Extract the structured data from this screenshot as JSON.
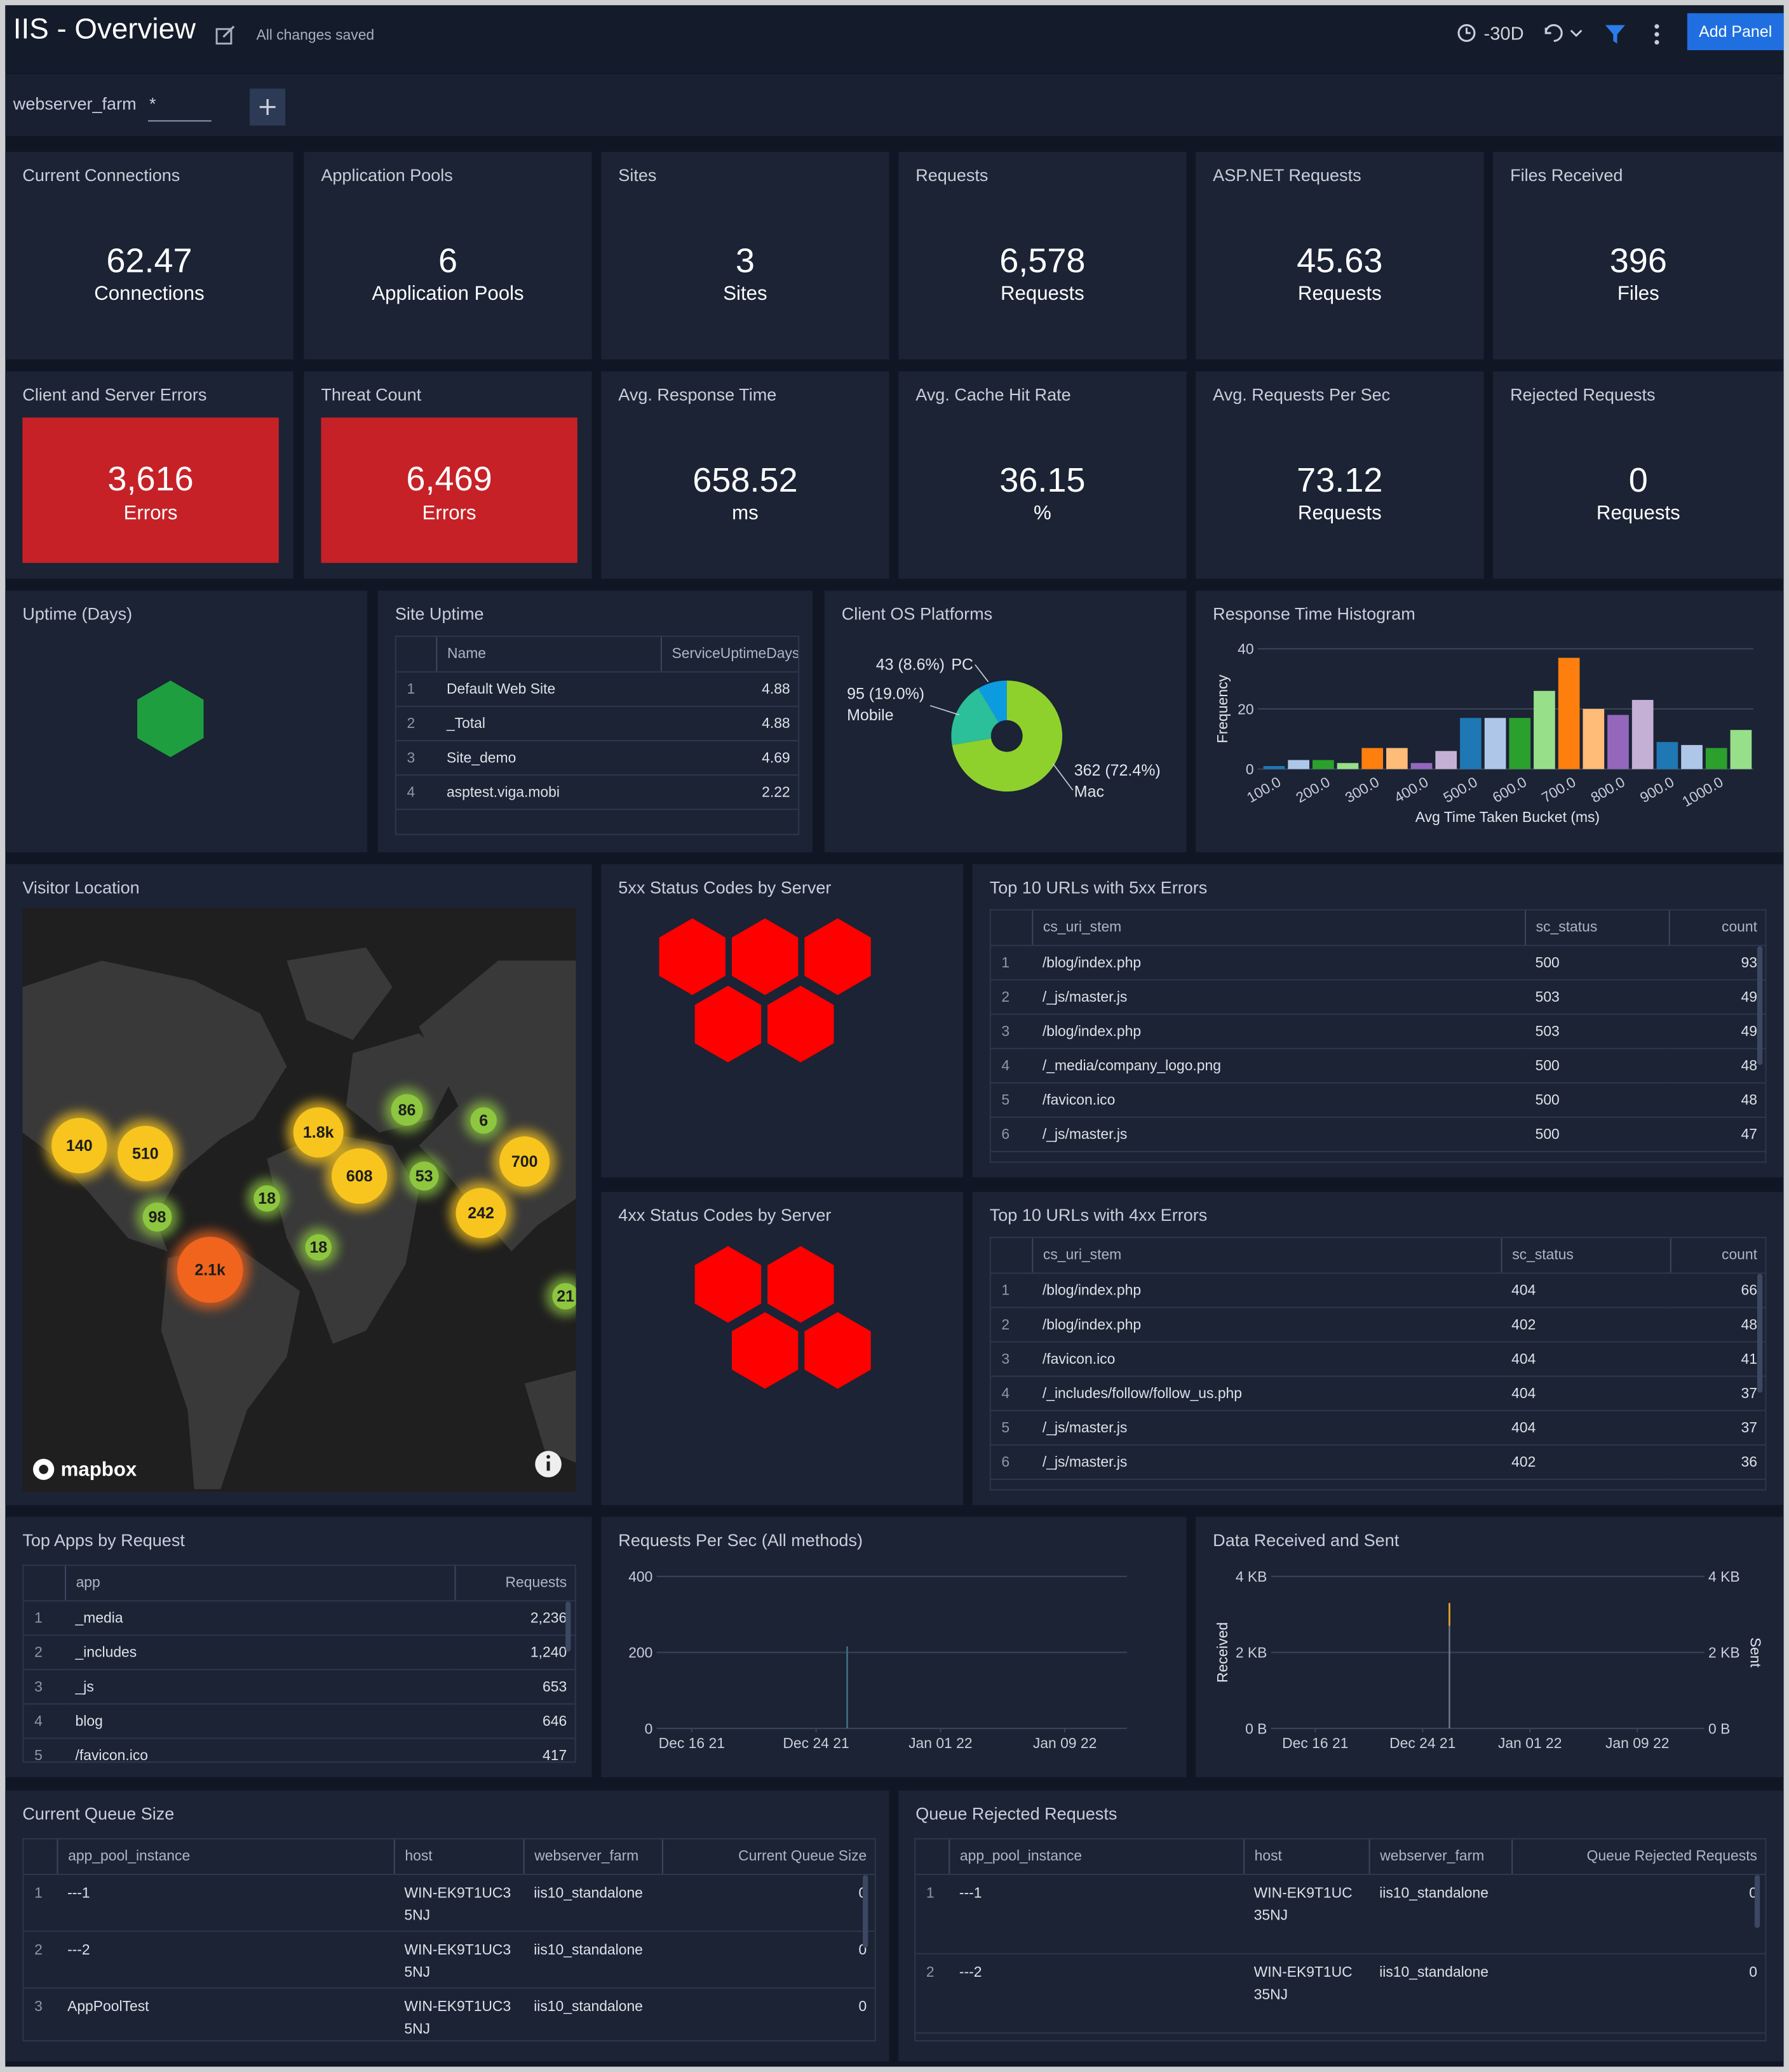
{
  "header": {
    "title": "IIS - Overview",
    "status": "All changes saved",
    "time_range": "-30D",
    "add_panel": "Add Panel"
  },
  "filter": {
    "name": "webserver_farm",
    "value": "*"
  },
  "stats": [
    {
      "title": "Current Connections",
      "value": "62.47",
      "unit": "Connections"
    },
    {
      "title": "Application Pools",
      "value": "6",
      "unit": "Application Pools"
    },
    {
      "title": "Sites",
      "value": "3",
      "unit": "Sites"
    },
    {
      "title": "Requests",
      "value": "6,578",
      "unit": "Requests"
    },
    {
      "title": "ASP.NET Requests",
      "value": "45.63",
      "unit": "Requests"
    },
    {
      "title": "Files Received",
      "value": "396",
      "unit": "Files"
    },
    {
      "title": "Client and Server Errors",
      "value": "3,616",
      "unit": "Errors",
      "color": "#c62127"
    },
    {
      "title": "Threat Count",
      "value": "6,469",
      "unit": "Errors",
      "color": "#c62127"
    },
    {
      "title": "Avg. Response Time",
      "value": "658.52",
      "unit": "ms"
    },
    {
      "title": "Avg. Cache Hit Rate",
      "value": "36.15",
      "unit": "%"
    },
    {
      "title": "Avg. Requests Per Sec",
      "value": "73.12",
      "unit": "Requests"
    },
    {
      "title": "Rejected Requests",
      "value": "0",
      "unit": "Requests"
    }
  ],
  "uptime": {
    "title": "Uptime (Days)"
  },
  "site_uptime": {
    "title": "Site Uptime",
    "columns": [
      "Name",
      "ServiceUptimeDays"
    ],
    "rows": [
      [
        "1",
        "Default Web Site",
        "4.88"
      ],
      [
        "2",
        "_Total",
        "4.88"
      ],
      [
        "3",
        "Site_demo",
        "4.69"
      ],
      [
        "4",
        "asptest.viga.mobi",
        "2.22"
      ]
    ]
  },
  "map": {
    "title": "Visitor Location",
    "clusters": [
      "140",
      "510",
      "1.8k",
      "86",
      "6",
      "608",
      "53",
      "700",
      "18",
      "98",
      "242",
      "18",
      "2.1k",
      "21"
    ],
    "attribution": "mapbox"
  },
  "status_5xx": {
    "title": "5xx Status Codes by Server"
  },
  "status_4xx": {
    "title": "4xx Status Codes by Server"
  },
  "urls_5xx": {
    "title": "Top 10 URLs with 5xx Errors",
    "columns": [
      "cs_uri_stem",
      "sc_status",
      "count"
    ],
    "rows": [
      [
        "1",
        "/blog/index.php",
        "500",
        "93"
      ],
      [
        "2",
        "/_js/master.js",
        "503",
        "49"
      ],
      [
        "3",
        "/blog/index.php",
        "503",
        "49"
      ],
      [
        "4",
        "/_media/company_logo.png",
        "500",
        "48"
      ],
      [
        "5",
        "/favicon.ico",
        "500",
        "48"
      ],
      [
        "6",
        "/_js/master.js",
        "500",
        "47"
      ]
    ]
  },
  "urls_4xx": {
    "title": "Top 10 URLs with 4xx Errors",
    "columns": [
      "cs_uri_stem",
      "sc_status",
      "count"
    ],
    "rows": [
      [
        "1",
        "/blog/index.php",
        "404",
        "66"
      ],
      [
        "2",
        "/blog/index.php",
        "402",
        "48"
      ],
      [
        "3",
        "/favicon.ico",
        "404",
        "41"
      ],
      [
        "4",
        "/_includes/follow/follow_us.php",
        "404",
        "37"
      ],
      [
        "5",
        "/_js/master.js",
        "404",
        "37"
      ],
      [
        "6",
        "/_js/master.js",
        "402",
        "36"
      ]
    ]
  },
  "top_apps": {
    "title": "Top Apps by Request",
    "columns": [
      "app",
      "Requests"
    ],
    "rows": [
      [
        "1",
        "_media",
        "2,236"
      ],
      [
        "2",
        "_includes",
        "1,240"
      ],
      [
        "3",
        "_js",
        "653"
      ],
      [
        "4",
        "blog",
        "646"
      ],
      [
        "5",
        "/favicon.ico",
        "417"
      ]
    ]
  },
  "queue_size": {
    "title": "Current Queue Size",
    "columns": [
      "app_pool_instance",
      "host",
      "webserver_farm",
      "Current Queue Size"
    ],
    "rows": [
      [
        "1",
        "---1",
        "WIN-EK9T1UC35NJ",
        "iis10_standalone",
        "0"
      ],
      [
        "2",
        "---2",
        "WIN-EK9T1UC35NJ",
        "iis10_standalone",
        "0"
      ],
      [
        "3",
        "AppPoolTest",
        "WIN-EK9T1UC35NJ",
        "iis10_standalone",
        "0"
      ]
    ]
  },
  "queue_rejected": {
    "title": "Queue Rejected Requests",
    "columns": [
      "app_pool_instance",
      "host",
      "webserver_farm",
      "Queue Rejected Requests"
    ],
    "rows": [
      [
        "1",
        "---1",
        "WIN-EK9T1UC35NJ",
        "iis10_standalone",
        "0"
      ],
      [
        "2",
        "---2",
        "WIN-EK9T1UC35NJ",
        "iis10_standalone",
        "0"
      ]
    ]
  },
  "chart_data": [
    {
      "type": "pie",
      "title": "Client OS Platforms",
      "categories": [
        "PC",
        "Mobile",
        "Mac"
      ],
      "values": [
        43,
        95,
        362
      ],
      "value_labels": [
        "43 (8.6%)",
        "95 (19.0%)",
        "362 (72.4%)"
      ],
      "colors": [
        "#0d9be0",
        "#2bbf9a",
        "#8fd12c"
      ]
    },
    {
      "type": "bar",
      "title": "Response Time Histogram",
      "categories": [
        "100.0",
        null,
        "200.0",
        null,
        "300.0",
        null,
        "400.0",
        null,
        "500.0",
        null,
        "600.0",
        null,
        "700.0",
        null,
        "800.0",
        null,
        "900.0",
        null,
        "1000.0",
        null
      ],
      "values": [
        1,
        3,
        3,
        2,
        7,
        7,
        2,
        6,
        17,
        17,
        17,
        26,
        37,
        20,
        18,
        23,
        9,
        8,
        7,
        13
      ],
      "colors": [
        "#1f77b4",
        "#aec7e8",
        "#2ca02c",
        "#98df8a",
        "#ff7f0e",
        "#ffbb78",
        "#9467bd",
        "#c5b0d5",
        "#1f77b4",
        "#aec7e8",
        "#2ca02c",
        "#98df8a",
        "#ff7f0e",
        "#ffbb78",
        "#9467bd",
        "#c5b0d5",
        "#1f77b4",
        "#aec7e8",
        "#2ca02c",
        "#98df8a"
      ],
      "ylim": [
        0,
        40
      ],
      "yticks": [
        0,
        20,
        40
      ],
      "xlabel": "Avg Time Taken Bucket (ms)",
      "ylabel": "Frequency",
      "grid": true
    },
    {
      "type": "line",
      "title": "Requests Per Sec (All methods)",
      "xlim": [
        "Dec 14 21",
        "Jan 13 22"
      ],
      "xticks": [
        "Dec 16 21",
        "Dec 24 21",
        "Jan 01 22",
        "Jan 09 22"
      ],
      "ylim": [
        0,
        400
      ],
      "yticks": [
        0,
        200,
        400
      ],
      "grid": true,
      "series": [
        {
          "color": "#3d7585",
          "x": [
            "Dec 26 21",
            "Dec 26 21"
          ],
          "values": [
            0,
            216
          ]
        }
      ]
    },
    {
      "type": "line",
      "title": "Data Received and Sent",
      "xlim": [
        "Dec 13 21",
        "Jan 14 22"
      ],
      "xticks": [
        "Dec 16 21",
        "Dec 24 21",
        "Jan 01 22",
        "Jan 09 22"
      ],
      "ylim": [
        0,
        4
      ],
      "yticks": [
        {
          "value": 0,
          "label": "0 B"
        },
        {
          "value": 2,
          "label": "2 KB"
        },
        {
          "value": 4,
          "label": "4 KB"
        }
      ],
      "y2lim": [
        0,
        4
      ],
      "y2ticks": [
        {
          "value": 0,
          "label": "0 B"
        },
        {
          "value": 2,
          "label": "2 KB"
        },
        {
          "value": 4,
          "label": "4 KB"
        }
      ],
      "ylabel": "Received",
      "y2label": "Sent",
      "grid": true,
      "series": [
        {
          "color": "#6f7787",
          "axis": "y2",
          "x": [
            "Dec 26 21",
            "Dec 26 21"
          ],
          "values": [
            0,
            3.3
          ]
        },
        {
          "color": "#f5a623",
          "x": [
            "Dec 26 21",
            "Dec 26 21"
          ],
          "values": [
            3.3,
            2.7
          ]
        }
      ]
    }
  ]
}
